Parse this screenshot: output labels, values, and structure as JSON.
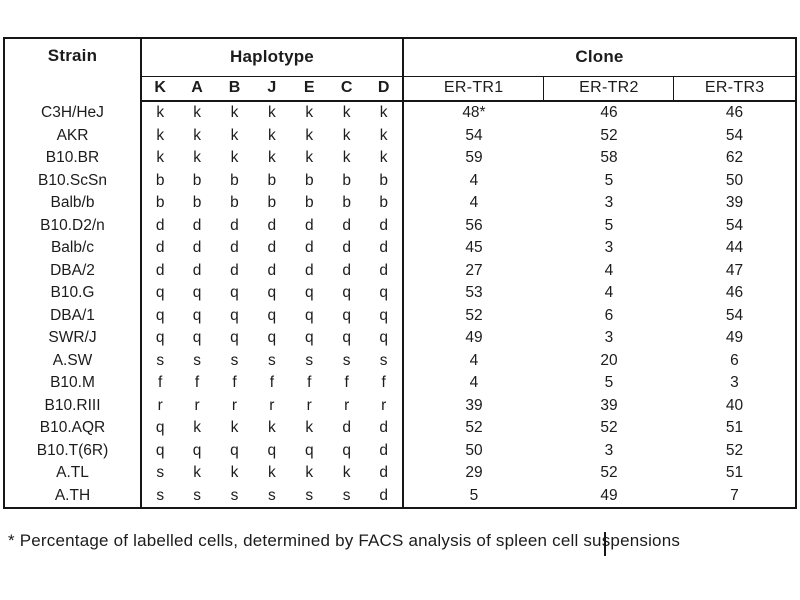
{
  "table": {
    "headers": {
      "strain": "Strain",
      "haplotype": "Haplotype",
      "clone": "Clone",
      "haplotype_columns": [
        "K",
        "A",
        "B",
        "J",
        "E",
        "C",
        "D"
      ],
      "clone_columns": [
        "ER-TR1",
        "ER-TR2",
        "ER-TR3"
      ]
    },
    "rows": [
      {
        "strain": "C3H/HeJ",
        "haplotypes": [
          "k",
          "k",
          "k",
          "k",
          "k",
          "k",
          "k"
        ],
        "clones": [
          "48*",
          "46",
          "46"
        ]
      },
      {
        "strain": "AKR",
        "haplotypes": [
          "k",
          "k",
          "k",
          "k",
          "k",
          "k",
          "k"
        ],
        "clones": [
          "54",
          "52",
          "54"
        ]
      },
      {
        "strain": "B10.BR",
        "haplotypes": [
          "k",
          "k",
          "k",
          "k",
          "k",
          "k",
          "k"
        ],
        "clones": [
          "59",
          "58",
          "62"
        ]
      },
      {
        "strain": "B10.ScSn",
        "haplotypes": [
          "b",
          "b",
          "b",
          "b",
          "b",
          "b",
          "b"
        ],
        "clones": [
          "4",
          "5",
          "50"
        ]
      },
      {
        "strain": "Balb/b",
        "haplotypes": [
          "b",
          "b",
          "b",
          "b",
          "b",
          "b",
          "b"
        ],
        "clones": [
          "4",
          "3",
          "39"
        ]
      },
      {
        "strain": "B10.D2/n",
        "haplotypes": [
          "d",
          "d",
          "d",
          "d",
          "d",
          "d",
          "d"
        ],
        "clones": [
          "56",
          "5",
          "54"
        ]
      },
      {
        "strain": "Balb/c",
        "haplotypes": [
          "d",
          "d",
          "d",
          "d",
          "d",
          "d",
          "d"
        ],
        "clones": [
          "45",
          "3",
          "44"
        ]
      },
      {
        "strain": "DBA/2",
        "haplotypes": [
          "d",
          "d",
          "d",
          "d",
          "d",
          "d",
          "d"
        ],
        "clones": [
          "27",
          "4",
          "47"
        ]
      },
      {
        "strain": "B10.G",
        "haplotypes": [
          "q",
          "q",
          "q",
          "q",
          "q",
          "q",
          "q"
        ],
        "clones": [
          "53",
          "4",
          "46"
        ]
      },
      {
        "strain": "DBA/1",
        "haplotypes": [
          "q",
          "q",
          "q",
          "q",
          "q",
          "q",
          "q"
        ],
        "clones": [
          "52",
          "6",
          "54"
        ]
      },
      {
        "strain": "SWR/J",
        "haplotypes": [
          "q",
          "q",
          "q",
          "q",
          "q",
          "q",
          "q"
        ],
        "clones": [
          "49",
          "3",
          "49"
        ]
      },
      {
        "strain": "A.SW",
        "haplotypes": [
          "s",
          "s",
          "s",
          "s",
          "s",
          "s",
          "s"
        ],
        "clones": [
          "4",
          "20",
          "6"
        ]
      },
      {
        "strain": "B10.M",
        "haplotypes": [
          "f",
          "f",
          "f",
          "f",
          "f",
          "f",
          "f"
        ],
        "clones": [
          "4",
          "5",
          "3"
        ]
      },
      {
        "strain": "B10.RIII",
        "haplotypes": [
          "r",
          "r",
          "r",
          "r",
          "r",
          "r",
          "r"
        ],
        "clones": [
          "39",
          "39",
          "40"
        ]
      },
      {
        "strain": "B10.AQR",
        "haplotypes": [
          "q",
          "k",
          "k",
          "k",
          "k",
          "d",
          "d"
        ],
        "clones": [
          "52",
          "52",
          "51"
        ]
      },
      {
        "strain": "B10.T(6R)",
        "haplotypes": [
          "q",
          "q",
          "q",
          "q",
          "q",
          "q",
          "d"
        ],
        "clones": [
          "50",
          "3",
          "52"
        ]
      },
      {
        "strain": "A.TL",
        "haplotypes": [
          "s",
          "k",
          "k",
          "k",
          "k",
          "k",
          "d"
        ],
        "clones": [
          "29",
          "52",
          "51"
        ]
      },
      {
        "strain": "A.TH",
        "haplotypes": [
          "s",
          "s",
          "s",
          "s",
          "s",
          "s",
          "d"
        ],
        "clones": [
          "5",
          "49",
          "7"
        ]
      }
    ]
  },
  "footnote": {
    "text": "* Percentage of labelled cells, determined by FACS analysis of spleen cell suspensions"
  },
  "colors": {
    "background": "#ffffff",
    "text": "#1c1c1c",
    "border": "#161616"
  }
}
